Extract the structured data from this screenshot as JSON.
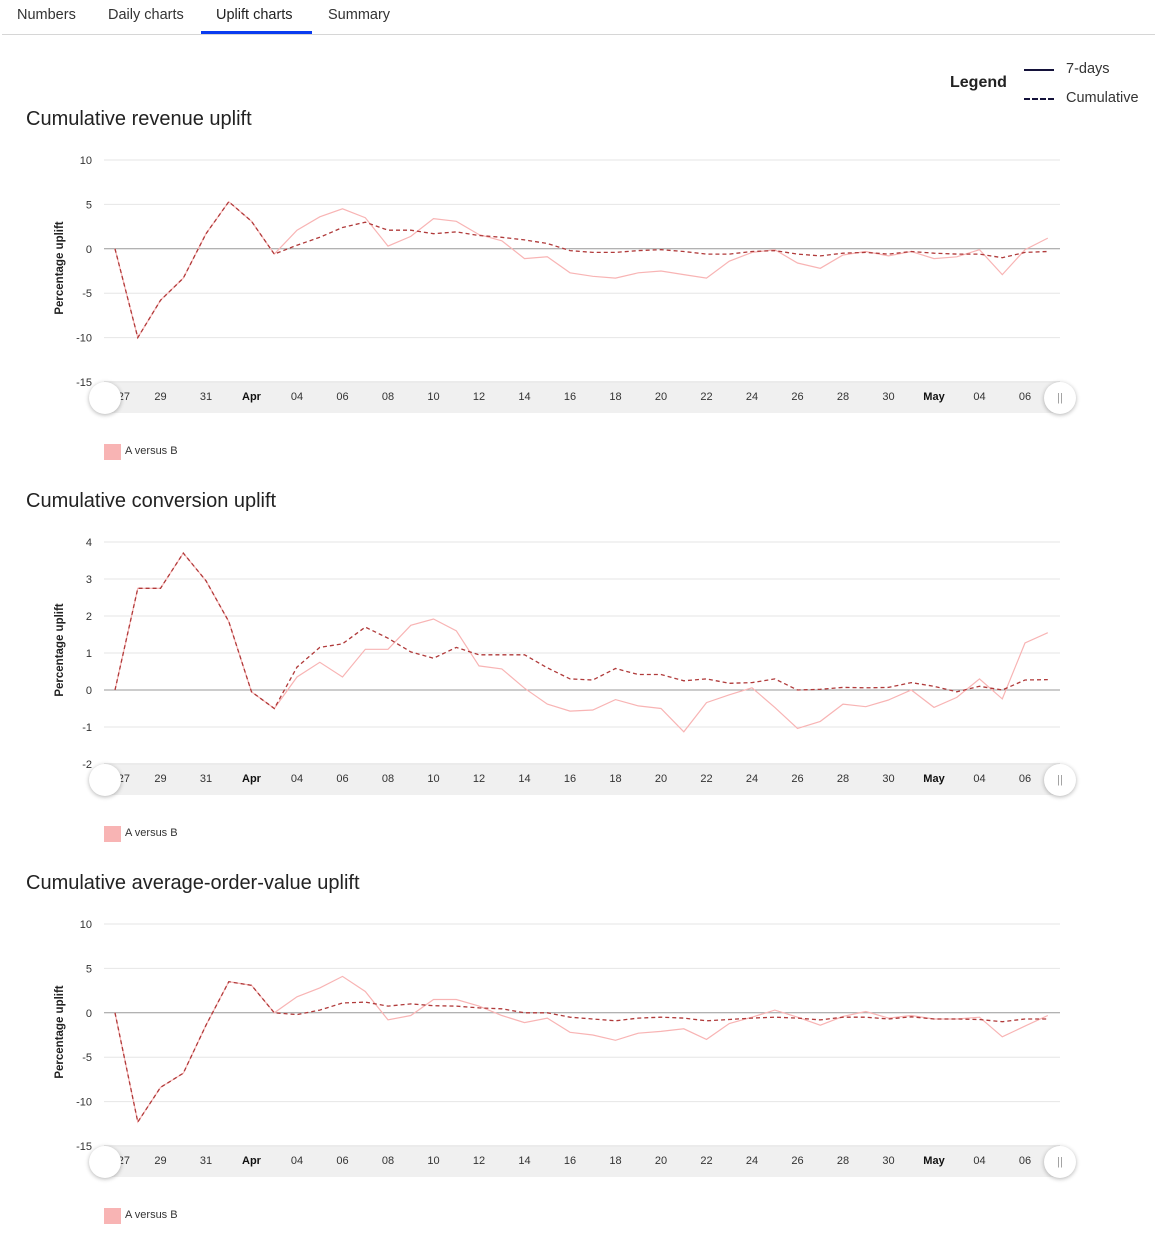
{
  "tabs": [
    {
      "label": "Numbers",
      "active": false
    },
    {
      "label": "Daily charts",
      "active": false
    },
    {
      "label": "Uplift charts",
      "active": true
    },
    {
      "label": "Summary",
      "active": false
    }
  ],
  "legend": {
    "title": "Legend",
    "solid_label": "7-days",
    "dashed_label": "Cumulative"
  },
  "colors": {
    "seven_days": "#f8b4b4",
    "cumulative": "#b03a3a",
    "tab_accent": "#0a3cf0",
    "zero_line": "#999999",
    "grid": "#e6e6e6"
  },
  "chart_data": [
    {
      "type": "line",
      "title": "Cumulative revenue uplift",
      "ylabel": "Percentage uplift",
      "ylim": [
        -15,
        10
      ],
      "yticks": [
        "10",
        "5",
        "0",
        "-5",
        "-10",
        "-15"
      ],
      "ytick_values": [
        10,
        5,
        0,
        -5,
        -10,
        -15
      ],
      "xtick_labels": [
        "||27",
        "29",
        "31",
        "Apr",
        "04",
        "06",
        "08",
        "10",
        "12",
        "14",
        "16",
        "18",
        "20",
        "22",
        "24",
        "26",
        "28",
        "30",
        "May",
        "04",
        "06"
      ],
      "series_legend": "A versus B",
      "series": [
        {
          "name": "7-days",
          "values": [
            0,
            -10,
            -5.8,
            -3.3,
            1.7,
            5.3,
            3.1,
            -0.6,
            2.1,
            3.6,
            4.5,
            3.5,
            0.3,
            1.4,
            3.4,
            3.1,
            1.6,
            0.9,
            -1.1,
            -0.9,
            -2.7,
            -3.1,
            -3.3,
            -2.7,
            -2.5,
            -2.9,
            -3.3,
            -1.4,
            -0.4,
            -0.1,
            -1.6,
            -2.2,
            -0.7,
            -0.3,
            -0.8,
            -0.3,
            -1.1,
            -0.9,
            -0.1,
            -2.9,
            -0.1,
            1.2
          ]
        },
        {
          "name": "Cumulative",
          "values": [
            0,
            -10,
            -5.8,
            -3.3,
            1.7,
            5.3,
            3.1,
            -0.6,
            0.4,
            1.3,
            2.4,
            3.0,
            2.1,
            2.1,
            1.7,
            1.9,
            1.5,
            1.3,
            1.0,
            0.6,
            -0.2,
            -0.4,
            -0.4,
            -0.2,
            -0.1,
            -0.3,
            -0.6,
            -0.6,
            -0.3,
            -0.2,
            -0.6,
            -0.8,
            -0.5,
            -0.4,
            -0.6,
            -0.3,
            -0.5,
            -0.6,
            -0.6,
            -1.0,
            -0.4,
            -0.3
          ]
        }
      ]
    },
    {
      "type": "line",
      "title": "Cumulative conversion uplift",
      "ylabel": "Percentage uplift",
      "ylim": [
        -2,
        4
      ],
      "yticks": [
        "4",
        "3",
        "2",
        "1",
        "0",
        "-1",
        "-2"
      ],
      "ytick_values": [
        4,
        3,
        2,
        1,
        0,
        -1,
        -2
      ],
      "xtick_labels": [
        "||27",
        "29",
        "31",
        "Apr",
        "04",
        "06",
        "08",
        "10",
        "12",
        "14",
        "16",
        "18",
        "20",
        "22",
        "24",
        "26",
        "28",
        "30",
        "May",
        "04",
        "06"
      ],
      "series_legend": "A versus B",
      "series": [
        {
          "name": "7-days",
          "values": [
            0,
            2.75,
            2.75,
            3.7,
            2.95,
            1.85,
            -0.05,
            -0.5,
            0.35,
            0.75,
            0.35,
            1.1,
            1.1,
            1.75,
            1.92,
            1.6,
            0.65,
            0.57,
            0.05,
            -0.38,
            -0.57,
            -0.54,
            -0.26,
            -0.43,
            -0.5,
            -1.13,
            -0.34,
            -0.13,
            0.06,
            -0.47,
            -1.04,
            -0.85,
            -0.38,
            -0.45,
            -0.27,
            0,
            -0.47,
            -0.2,
            0.3,
            -0.24,
            1.27,
            1.55
          ]
        },
        {
          "name": "Cumulative",
          "values": [
            0,
            2.75,
            2.75,
            3.7,
            2.95,
            1.85,
            -0.05,
            -0.5,
            0.62,
            1.15,
            1.25,
            1.7,
            1.4,
            1.03,
            0.86,
            1.15,
            0.95,
            0.95,
            0.95,
            0.6,
            0.3,
            0.27,
            0.58,
            0.42,
            0.42,
            0.25,
            0.3,
            0.18,
            0.2,
            0.3,
            0,
            0.02,
            0.07,
            0.06,
            0.07,
            0.2,
            0.1,
            -0.05,
            0.1,
            0,
            0.27,
            0.28
          ]
        }
      ]
    },
    {
      "type": "line",
      "title": "Cumulative average-order-value uplift",
      "ylabel": "Percentage uplift",
      "ylim": [
        -15,
        10
      ],
      "yticks": [
        "10",
        "5",
        "0",
        "-5",
        "-10",
        "-15"
      ],
      "ytick_values": [
        10,
        5,
        0,
        -5,
        -10,
        -15
      ],
      "xtick_labels": [
        "||27",
        "29",
        "31",
        "Apr",
        "04",
        "06",
        "08",
        "10",
        "12",
        "14",
        "16",
        "18",
        "20",
        "22",
        "24",
        "26",
        "28",
        "30",
        "May",
        "04",
        "06"
      ],
      "series_legend": "A versus B",
      "series": [
        {
          "name": "7-days",
          "values": [
            0,
            -12.3,
            -8.4,
            -6.8,
            -1.4,
            3.5,
            3.1,
            0,
            1.8,
            2.8,
            4.1,
            2.4,
            -0.8,
            -0.3,
            1.5,
            1.5,
            0.75,
            -0.3,
            -1.1,
            -0.6,
            -2.2,
            -2.5,
            -3.1,
            -2.3,
            -2.1,
            -1.8,
            -3.0,
            -1.2,
            -0.5,
            0.3,
            -0.5,
            -1.4,
            -0.4,
            0.15,
            -0.6,
            -0.3,
            -0.7,
            -0.7,
            -0.5,
            -2.7,
            -1.5,
            -0.3
          ]
        },
        {
          "name": "Cumulative",
          "values": [
            0,
            -12.3,
            -8.4,
            -6.8,
            -1.4,
            3.5,
            3.1,
            0,
            -0.2,
            0.3,
            1.1,
            1.2,
            0.75,
            1.0,
            0.8,
            0.75,
            0.55,
            0.45,
            0,
            0,
            -0.5,
            -0.7,
            -0.9,
            -0.6,
            -0.5,
            -0.6,
            -0.9,
            -0.75,
            -0.6,
            -0.5,
            -0.6,
            -0.8,
            -0.5,
            -0.5,
            -0.7,
            -0.45,
            -0.7,
            -0.7,
            -0.75,
            -1.0,
            -0.7,
            -0.7
          ]
        }
      ]
    }
  ]
}
